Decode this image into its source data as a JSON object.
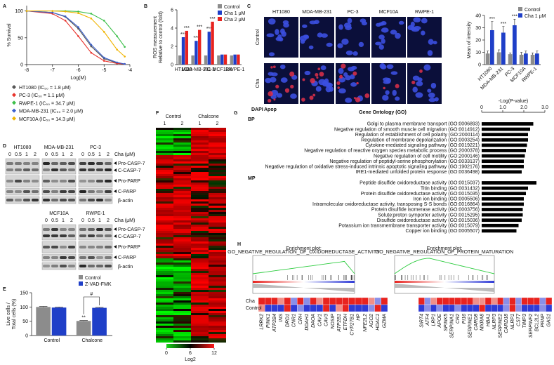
{
  "panel_labels": [
    "A",
    "B",
    "C",
    "D",
    "E",
    "F",
    "G",
    "H"
  ],
  "panel_a": {
    "type": "line",
    "ylabel": "% Survival",
    "xlabel": "Log(M)",
    "xlim": [
      -8,
      -4
    ],
    "ylim": [
      0,
      110
    ],
    "xticks": [
      -8,
      -7,
      -6,
      -5,
      -4
    ],
    "yticks": [
      0,
      50,
      100
    ],
    "x": [
      -8,
      -7,
      -6.5,
      -6,
      -5.5,
      -5,
      -4.5,
      -4.2
    ],
    "series": [
      {
        "name": "HT1080 (IC₅₀ = 1.8 μM)",
        "color": "#555555",
        "values": [
          100,
          97,
          89,
          67,
          34,
          11,
          3,
          1
        ]
      },
      {
        "name": "PC-3 (IC₅₀ = 1.1 μM)",
        "color": "#e8322b",
        "values": [
          100,
          95,
          82,
          53,
          22,
          7,
          2,
          1
        ]
      },
      {
        "name": "RWPE-1 (IC₅₀ = 34.7 μM)",
        "color": "#3cbf4a",
        "values": [
          100,
          100,
          100,
          99,
          95,
          82,
          53,
          33
        ]
      },
      {
        "name": "MDA-MB-231 (IC₅₀ = 2.0 μM)",
        "color": "#3a5fcd",
        "values": [
          100,
          97,
          90,
          70,
          37,
          13,
          4,
          1
        ]
      },
      {
        "name": "MCF10A (IC₅₀ = 14.3 μM)",
        "color": "#f0b400",
        "values": [
          100,
          100,
          99,
          96,
          86,
          61,
          28,
          15
        ]
      }
    ]
  },
  "panel_b": {
    "type": "bar",
    "ylabel": [
      "ROS measurement",
      "Relative to control (fold)"
    ],
    "ylim": [
      0,
      6
    ],
    "yticks": [
      0,
      2,
      4,
      6
    ],
    "categories": [
      "HT1080",
      "MDA-MB-231",
      "PC-3",
      "MCF10A",
      "RWPE-1"
    ],
    "series": [
      {
        "name": "Control",
        "color": "#8c8c8c",
        "values": [
          1,
          1,
          1,
          1,
          1
        ]
      },
      {
        "name": "Cha 1 μM",
        "color": "#1f3fc8",
        "values": [
          3.0,
          2.6,
          3.6,
          1.1,
          1.1
        ],
        "significance": [
          "***",
          "***",
          "***",
          null,
          null
        ]
      },
      {
        "name": "Cha 2 μM",
        "color": "#e8231f",
        "values": [
          3.7,
          3.8,
          4.7,
          1.1,
          1.1
        ],
        "significance": [
          "***",
          "***",
          "***",
          null,
          null
        ]
      }
    ]
  },
  "panel_c": {
    "columns": [
      "HT1080",
      "MDA-MB-231",
      "PC-3",
      "MCF10A",
      "RWPE-1"
    ],
    "rows": [
      "Control",
      "Cha"
    ],
    "stain_labels": [
      "DAPI",
      "Apop"
    ],
    "chart": {
      "type": "bar",
      "ylabel": [
        "Mean of intensity"
      ],
      "ylim": [
        0,
        40
      ],
      "yticks": [
        0,
        10,
        20,
        30,
        40
      ],
      "categories": [
        "HT1080",
        "MDA-MB-231",
        "PC-3",
        "MCF10A",
        "RWPE-1"
      ],
      "series": [
        {
          "name": "Control",
          "color": "#8c8c8c",
          "values": [
            9,
            10,
            8.5,
            8,
            8
          ],
          "errors": [
            2,
            2,
            1,
            2,
            1.5
          ]
        },
        {
          "name": "Cha 1 μM",
          "color": "#1f3fc8",
          "values": [
            28,
            26,
            32,
            9,
            9
          ],
          "errors": [
            7,
            5,
            5,
            2,
            2
          ],
          "significance": [
            "***",
            "***",
            "***",
            null,
            null
          ]
        }
      ]
    }
  },
  "panel_d": {
    "groups_top": [
      "HT1080",
      "MDA-MB-231",
      "PC-3"
    ],
    "groups_bottom": [
      "MCF10A",
      "RWPE-1"
    ],
    "doses": [
      "0",
      "0.5",
      "1",
      "2"
    ],
    "dose_label": "Cha (μM)",
    "bands": [
      "Pro-CASP-7",
      "C-CASP-7",
      "Pro-PARP",
      "C-PARP",
      "β-actin"
    ]
  },
  "panel_e": {
    "type": "bar",
    "ylabel": [
      "Live cells /",
      "Total cells (%)"
    ],
    "ylim": [
      0,
      150
    ],
    "yticks": [
      0,
      50,
      100,
      150
    ],
    "categories": [
      "Control",
      "Chalcone"
    ],
    "series": [
      {
        "name": "Control",
        "color": "#8c8c8c",
        "values": [
          100,
          51
        ],
        "errors": [
          2,
          1.5
        ],
        "significance": [
          null,
          "**"
        ]
      },
      {
        "name": "Z-VAD-FMK",
        "color": "#1f3fc8",
        "values": [
          98,
          97
        ],
        "errors": [
          2,
          1.5
        ]
      }
    ],
    "bracket_label": "#"
  },
  "panel_f": {
    "groups": [
      "Control",
      "Chalcone"
    ],
    "replicates": [
      "1",
      "2",
      "1",
      "2"
    ],
    "colorbar": {
      "label": "Log2",
      "lim": [
        0,
        12
      ],
      "ticks": [
        0,
        6,
        12
      ]
    }
  },
  "panel_g": {
    "type": "bar",
    "title": "Gene Ontology (GO)",
    "xlabel": "-Log(P-value)",
    "xlim": [
      0,
      3
    ],
    "xticks": [
      0,
      {
        "value": 1,
        "label": "1.0"
      },
      {
        "value": 2,
        "label": "2.0"
      },
      {
        "value": 3,
        "label": "3.0"
      }
    ],
    "sections": [
      {
        "name": "BP",
        "terms": [
          "Golgi to plasma membrane transport (GO:0006893)",
          "Negative regulation of smooth muscle cell migration (GO:0014912)",
          "Regulation of establishment of cell polarity (GO:2000114)",
          "Regulation of membrane depolarization (GO:0003254)",
          "Cytokine-mediated signaling pathway (GO:0019221)",
          "Negative regulation of reactive oxygen species metabolic process (GO:2000378)",
          "Negative regulation of cell motility (GO:2000146)",
          "Negative regulation of peptidyl-serine phosphorylation (GO:0033137)",
          "Negative regulation of oxidative stress-induced intrinsic apoptotic signaling pathway (GO:1902176)",
          "IRE1-mediated unfolded protein response (GO:0036498)"
        ],
        "values": [
          2.45,
          2.3,
          2.2,
          2.2,
          2.15,
          2.1,
          2.05,
          2.0,
          2.0,
          1.9
        ]
      },
      {
        "name": "MP",
        "terms": [
          "Peptide disulfide oxidoreductase activity (GO:0015037)",
          "Titin binding (GO:0031432)",
          "Protein disulfide oxidoreductase activity (GO:0015035)",
          "Iron ion binding (GO:0005506)",
          "Intramolecular oxidoreductase activity, transposing S-S bonds (GO:0016864)",
          "Protein disulfide isomerase activity (GO:0003756)",
          "Solute:proton symporter activity (GO:0015295)",
          "Disulfide oxidoreductase activity (GO:0015036)",
          "Potassium ion transmembrane transporter activity (GO:0015079)",
          "Copper ion binding (GO:0005507)"
        ],
        "values": [
          2.6,
          2.2,
          2.1,
          2.0,
          2.0,
          1.95,
          1.95,
          1.9,
          1.75,
          1.65
        ]
      }
    ]
  },
  "panel_h": {
    "row_labels": [
      "Cha",
      "Control"
    ],
    "plots": [
      {
        "title": "Enrichment plot:",
        "subtitle": "GO_NEGATIVE_REGULATION_OF_OXIDOREDUCTASE_ACTIVITY",
        "genes": [
          "LRRK2",
          "PINK1",
          "ATP2B4",
          "INS",
          "DRD1",
          "CNR1",
          "CRH",
          "DDAH1",
          "DAOA",
          "CAV1",
          "CAV3",
          "NOSIP",
          "ATP2B1",
          "ETFDH",
          "CYP27B1",
          "HP",
          "NFE2L2",
          "AGO2",
          "HDAC1",
          "GZMA"
        ]
      },
      {
        "title": "Enrichment plot:",
        "subtitle": "GO_NEGATIVE_REGULATION_OF_PROTEIN_MATURATION",
        "genes": [
          "SIRT4",
          "ATF4",
          "LRP1",
          "APOE",
          "SPINK5",
          "SERPINA1",
          "CR2",
          "PI16",
          "SERPINE1",
          "CARD8",
          "MXRA8",
          "HBA1",
          "NLRP3",
          "SERPINE2",
          "CARD18",
          "NLRP1",
          "CST7",
          "TIMP3",
          "SERPINF2",
          "BCL2L2",
          "PRNP",
          "GAS1"
        ]
      }
    ]
  }
}
